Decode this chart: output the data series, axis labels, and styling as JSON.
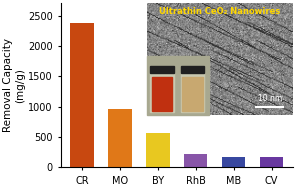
{
  "categories": [
    "CR",
    "MO",
    "BY",
    "RhB",
    "MB",
    "CV"
  ],
  "values": [
    2370,
    960,
    570,
    215,
    170,
    175
  ],
  "bar_colors": [
    "#C84810",
    "#E07818",
    "#E8C820",
    "#8855A8",
    "#3848A0",
    "#6838A0"
  ],
  "ylabel": "Removal Capacity\n(mg/g)",
  "ylim": [
    0,
    2700
  ],
  "yticks": [
    0,
    500,
    1000,
    1500,
    2000,
    2500
  ],
  "inset_title": "Ultrathin CeO₂ Nanowires",
  "inset_title_color": "#FFD700",
  "background_color": "#ffffff",
  "ylabel_fontsize": 7.5,
  "tick_fontsize": 7,
  "inset_scale_bar": "10 nm",
  "inset_bg_color": "#888888",
  "inset_border_color": "#cccccc",
  "vial_left_liquid": "#C03010",
  "vial_right_liquid": "#C8A870",
  "vial_glass": "#C8C8B0",
  "vial_cap": "#202020",
  "vial_bg": "#B8B8A0"
}
